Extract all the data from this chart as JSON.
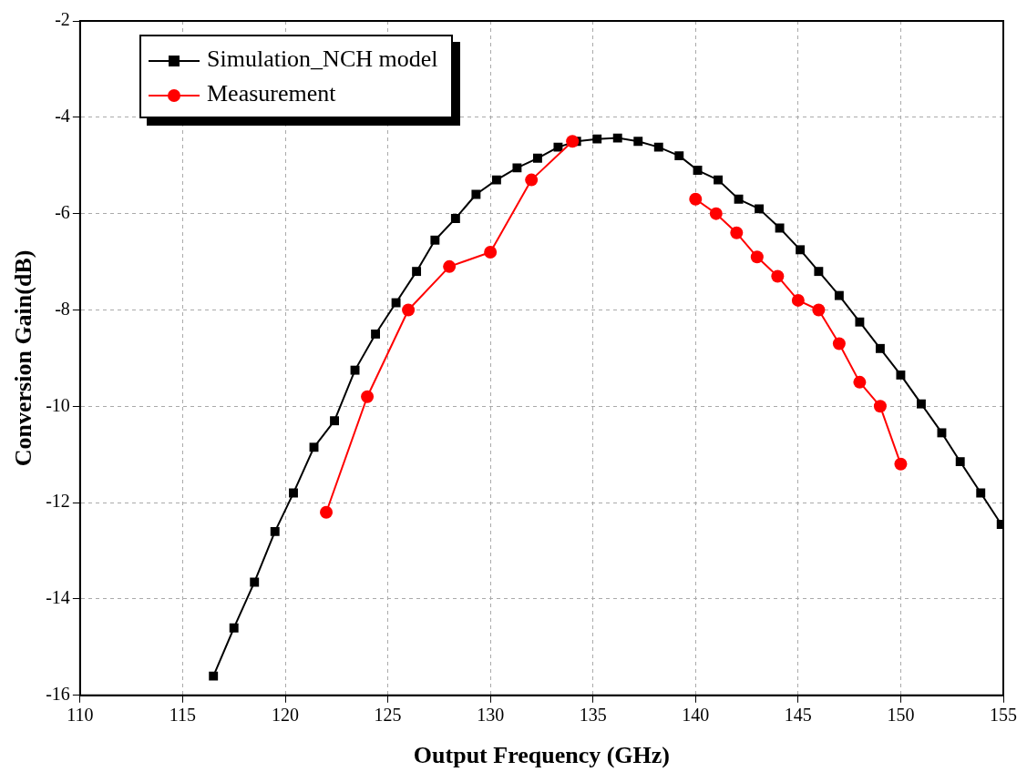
{
  "chart_data": {
    "type": "line",
    "xlabel": "Output Frequency (GHz)",
    "ylabel": "Conversion Gain(dB)",
    "xlim": [
      110,
      155
    ],
    "xticks": [
      110,
      115,
      120,
      125,
      130,
      135,
      140,
      145,
      150,
      155
    ],
    "ylim": [
      -16,
      -2
    ],
    "yticks": [
      -16,
      -14,
      -12,
      -10,
      -8,
      -6,
      -4,
      -2
    ],
    "grid": true,
    "legend": "top left",
    "line_style": "solid",
    "series": [
      {
        "name": "Simulation_NCH model",
        "color": "#000000",
        "marker": "square",
        "x": [
          116.5,
          117.5,
          118.5,
          119.5,
          120.4,
          121.4,
          122.4,
          123.4,
          124.4,
          125.4,
          126.4,
          127.3,
          128.3,
          129.3,
          130.3,
          131.3,
          132.3,
          133.3,
          134.2,
          135.2,
          136.2,
          137.2,
          138.2,
          139.2,
          140.1,
          141.1,
          142.1,
          143.1,
          144.1,
          145.1,
          146.0,
          147.0,
          148.0,
          149.0,
          150.0,
          151.0,
          152.0,
          152.9,
          153.9,
          154.9
        ],
        "values": [
          -15.6,
          -14.6,
          -13.65,
          -12.6,
          -11.8,
          -10.85,
          -10.3,
          -9.25,
          -8.5,
          -7.85,
          -7.2,
          -6.55,
          -6.1,
          -5.6,
          -5.3,
          -5.05,
          -4.85,
          -4.62,
          -4.5,
          -4.45,
          -4.43,
          -4.5,
          -4.62,
          -4.8,
          -5.1,
          -5.3,
          -5.7,
          -5.9,
          -6.3,
          -6.75,
          -7.2,
          -7.7,
          -8.25,
          -8.8,
          -9.35,
          -9.95,
          -10.55,
          -11.15,
          -11.8,
          -12.45
        ]
      },
      {
        "name": "Measurement",
        "color": "#ff0000",
        "marker": "circle",
        "x": [
          122,
          124,
          126,
          128,
          130,
          132,
          134,
          137,
          140,
          141,
          142,
          143,
          144,
          145,
          146,
          147,
          148,
          149,
          150
        ],
        "values": [
          -12.2,
          -9.8,
          -8.0,
          -7.1,
          -6.8,
          -5.3,
          -4.5,
          null,
          -5.7,
          -6.0,
          -6.4,
          -6.9,
          -7.3,
          -7.8,
          -8.0,
          -8.7,
          -9.5,
          -10.0,
          -11.2
        ]
      }
    ]
  }
}
